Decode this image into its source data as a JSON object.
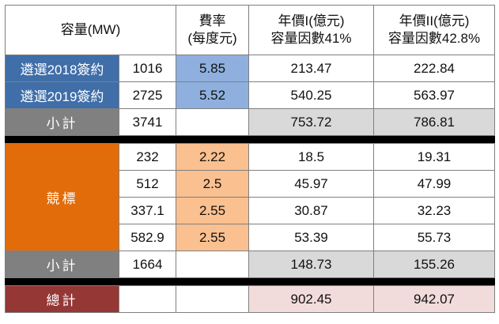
{
  "header": {
    "capacity": "容量(MW)",
    "rate_line1": "費率",
    "rate_line2": "(每度元)",
    "annual1_line1": "年價I(億元)",
    "annual1_line2": "容量因數41%",
    "annual2_line1": "年價II(億元)",
    "annual2_line2": "容量因數42.8%"
  },
  "selection": [
    {
      "label": "遴選2018簽約",
      "capacity": "1016",
      "rate": "5.85",
      "annual1": "213.47",
      "annual2": "222.84"
    },
    {
      "label": "遴選2019簽約",
      "capacity": "2725",
      "rate": "5.52",
      "annual1": "540.25",
      "annual2": "563.97"
    }
  ],
  "selection_subtotal": {
    "label": "小計",
    "capacity": "3741",
    "rate": "",
    "annual1": "753.72",
    "annual2": "786.81"
  },
  "auction_label": "競標",
  "auction": [
    {
      "capacity": "232",
      "rate": "2.22",
      "annual1": "18.5",
      "annual2": "19.31"
    },
    {
      "capacity": "512",
      "rate": "2.5",
      "annual1": "45.97",
      "annual2": "47.99"
    },
    {
      "capacity": "337.1",
      "rate": "2.55",
      "annual1": "30.87",
      "annual2": "32.23"
    },
    {
      "capacity": "582.9",
      "rate": "2.55",
      "annual1": "53.39",
      "annual2": "55.73"
    }
  ],
  "auction_subtotal": {
    "label": "小計",
    "capacity": "1664",
    "rate": "",
    "annual1": "148.73",
    "annual2": "155.26"
  },
  "total": {
    "label": "總計",
    "capacity": "",
    "rate": "",
    "annual1": "902.45",
    "annual2": "942.07"
  },
  "colors": {
    "selection_label": "#3f6ea8",
    "selection_rate": "#8fb0de",
    "subtotal_label": "#808080",
    "subtotal_values": "#d9d9d9",
    "auction_label": "#e36c0a",
    "auction_rate": "#fac090",
    "total_label": "#953735",
    "total_values": "#f2dcdb"
  }
}
